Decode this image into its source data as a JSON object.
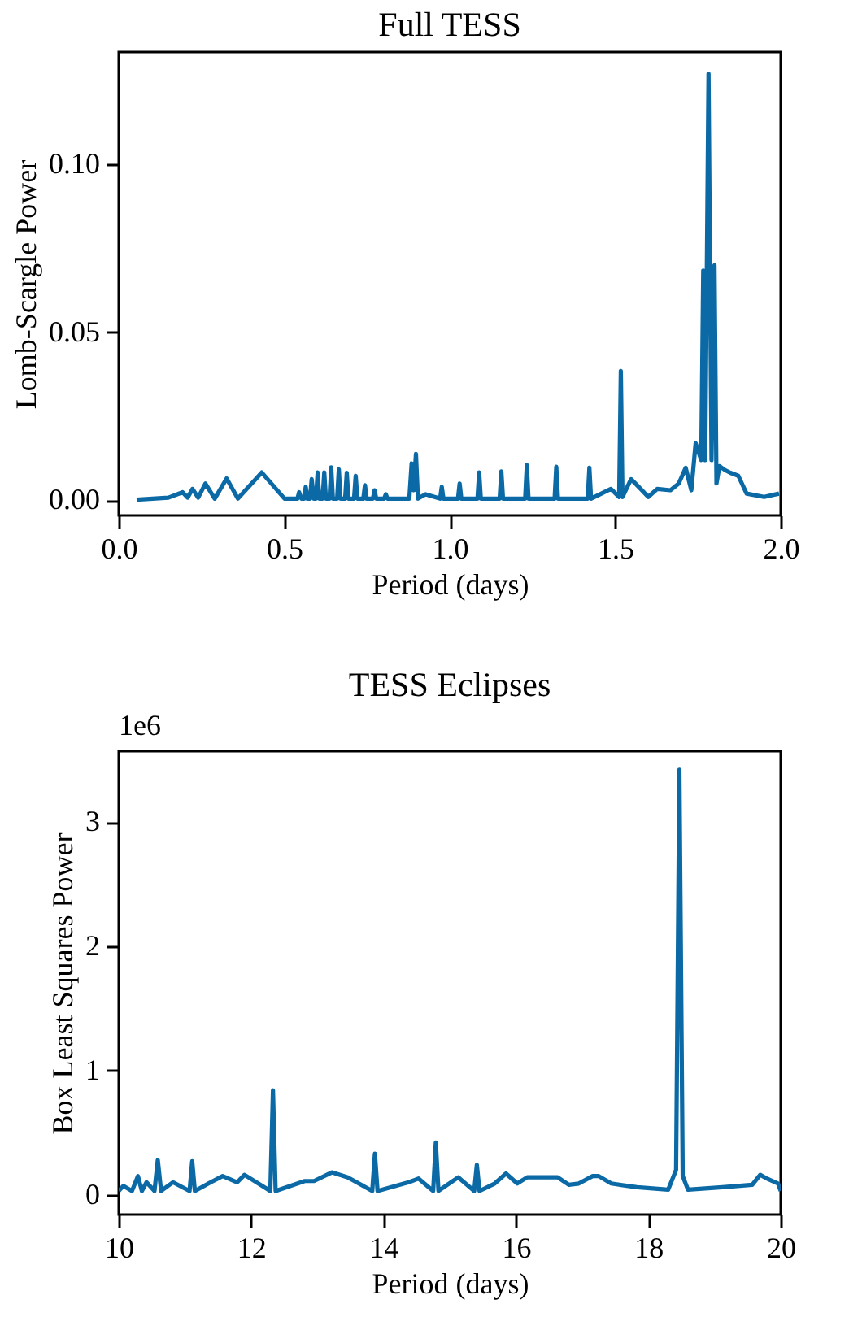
{
  "chart_data": [
    {
      "type": "line",
      "title": "Full TESS",
      "xlabel": "Period (days)",
      "ylabel": "Lomb-Scargle Power",
      "grid": false,
      "line_style": "solid",
      "marker": "none",
      "xlim": [
        0,
        2
      ],
      "xticks": [
        {
          "value": 0,
          "label": "0.0"
        },
        {
          "value": 0.5,
          "label": "0.5"
        },
        {
          "value": 1,
          "label": "1.0"
        },
        {
          "value": 1.5,
          "label": "1.5"
        },
        {
          "value": 2,
          "label": "2.0"
        }
      ],
      "ylim": [
        -0.0045,
        0.1335
      ],
      "yticks": [
        {
          "value": 0,
          "label": "0.00"
        },
        {
          "value": 0.05,
          "label": "0.05"
        },
        {
          "value": 0.1,
          "label": "0.10"
        }
      ],
      "series": [
        {
          "color": "#0b6aa5",
          "x": [
            0.054,
            0.15,
            0.193,
            0.208,
            0.223,
            0.24,
            0.262,
            0.29,
            0.326,
            0.36,
            0.432,
            0.501,
            0.54,
            0.545,
            0.552,
            0.56,
            0.565,
            0.57,
            0.578,
            0.583,
            0.589,
            0.596,
            0.601,
            0.606,
            0.616,
            0.621,
            0.626,
            0.637,
            0.642,
            0.647,
            0.66,
            0.665,
            0.67,
            0.684,
            0.689,
            0.694,
            0.711,
            0.716,
            0.721,
            0.739,
            0.744,
            0.749,
            0.768,
            0.773,
            0.778,
            0.802,
            0.807,
            0.812,
            0.878,
            0.885,
            0.891,
            0.898,
            0.904,
            0.927,
            0.971,
            0.976,
            0.981,
            1.025,
            1.03,
            1.035,
            1.084,
            1.089,
            1.094,
            1.151,
            1.156,
            1.161,
            1.228,
            1.233,
            1.238,
            1.317,
            1.322,
            1.327,
            1.417,
            1.422,
            1.427,
            1.487,
            1.512,
            1.517,
            1.522,
            1.548,
            1.571,
            1.6,
            1.627,
            1.667,
            1.692,
            1.713,
            1.73,
            1.743,
            1.76,
            1.766,
            1.772,
            1.782,
            1.791,
            1.8,
            1.806,
            1.815,
            1.832,
            1.848,
            1.872,
            1.897,
            1.95,
            1.995
          ],
          "values": [
            0.0002,
            0.0008,
            0.0024,
            0.0008,
            0.0034,
            0.0008,
            0.005,
            0.0005,
            0.0065,
            0.0005,
            0.0083,
            0.0005,
            0.0005,
            0.0024,
            0.0005,
            0.0005,
            0.004,
            0.0005,
            0.0005,
            0.0063,
            0.0005,
            0.0005,
            0.0083,
            0.0005,
            0.0005,
            0.0083,
            0.0005,
            0.0005,
            0.0098,
            0.0005,
            0.0005,
            0.0092,
            0.0005,
            0.0005,
            0.0082,
            0.0005,
            0.0005,
            0.0073,
            0.0005,
            0.0005,
            0.0045,
            0.0005,
            0.0005,
            0.003,
            0.0005,
            0.0005,
            0.0018,
            0.0005,
            0.0005,
            0.011,
            0.003,
            0.0138,
            0.0005,
            0.0018,
            0.0005,
            0.004,
            0.0005,
            0.0005,
            0.005,
            0.0005,
            0.0005,
            0.0083,
            0.0005,
            0.0005,
            0.0086,
            0.0005,
            0.0005,
            0.0105,
            0.0005,
            0.0005,
            0.01,
            0.0005,
            0.0005,
            0.0097,
            0.0005,
            0.0034,
            0.001,
            0.0385,
            0.001,
            0.0063,
            0.004,
            0.001,
            0.0034,
            0.003,
            0.005,
            0.0097,
            0.003,
            0.017,
            0.012,
            0.0684,
            0.012,
            0.127,
            0.012,
            0.07,
            0.005,
            0.0102,
            0.009,
            0.0082,
            0.0073,
            0.002,
            0.001,
            0.002
          ]
        }
      ]
    },
    {
      "type": "line",
      "title": "TESS Eclipses",
      "xlabel": "Period (days)",
      "ylabel": "Box Least Squares Power",
      "grid": false,
      "line_style": "solid",
      "marker": "none",
      "annotations": [
        "1e6"
      ],
      "xlim": [
        10,
        20
      ],
      "xticks": [
        10,
        12,
        14,
        16,
        18,
        20
      ],
      "ylim": [
        -0.16,
        3.57
      ],
      "yticks": [
        0,
        1,
        2,
        3
      ],
      "series": [
        {
          "color": "#0b6aa5",
          "x": [
            10.0,
            10.07,
            10.2,
            10.29,
            10.35,
            10.42,
            10.54,
            10.59,
            10.64,
            10.82,
            11.07,
            11.11,
            11.15,
            11.39,
            11.57,
            11.79,
            11.9,
            12.29,
            12.33,
            12.37,
            12.81,
            12.95,
            13.22,
            13.46,
            13.56,
            13.83,
            13.87,
            13.91,
            14.38,
            14.53,
            14.75,
            14.79,
            14.83,
            15.13,
            15.37,
            15.41,
            15.45,
            15.68,
            15.85,
            16.02,
            16.17,
            16.43,
            16.63,
            16.8,
            16.95,
            17.16,
            17.25,
            17.44,
            17.83,
            18.3,
            18.42,
            18.47,
            18.52,
            18.6,
            19.12,
            19.57,
            19.69,
            19.79,
            19.96,
            20.0
          ],
          "values": [
            0.03,
            0.07,
            0.03,
            0.15,
            0.03,
            0.1,
            0.03,
            0.28,
            0.03,
            0.1,
            0.03,
            0.27,
            0.03,
            0.1,
            0.15,
            0.1,
            0.16,
            0.03,
            0.84,
            0.03,
            0.11,
            0.11,
            0.18,
            0.14,
            0.11,
            0.03,
            0.33,
            0.03,
            0.1,
            0.13,
            0.03,
            0.42,
            0.03,
            0.14,
            0.03,
            0.24,
            0.03,
            0.09,
            0.17,
            0.09,
            0.14,
            0.14,
            0.14,
            0.08,
            0.09,
            0.15,
            0.15,
            0.09,
            0.06,
            0.04,
            0.2,
            3.42,
            0.15,
            0.04,
            0.06,
            0.08,
            0.16,
            0.13,
            0.09,
            0.03
          ]
        }
      ]
    }
  ]
}
